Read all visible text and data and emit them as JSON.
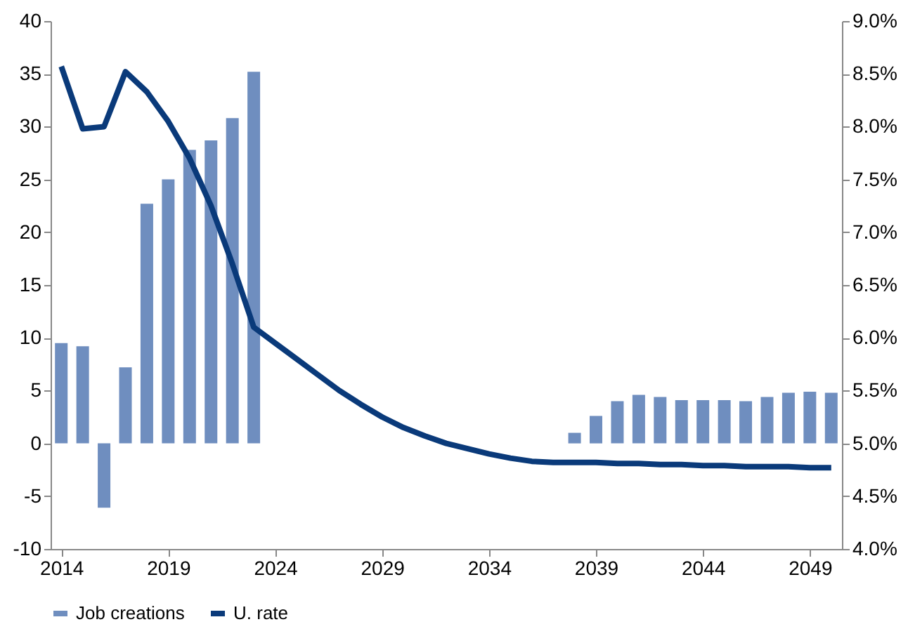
{
  "chart_data": {
    "type": "bar",
    "x": [
      2014,
      2015,
      2016,
      2017,
      2018,
      2019,
      2020,
      2021,
      2022,
      2023,
      2024,
      2025,
      2026,
      2027,
      2028,
      2029,
      2030,
      2031,
      2032,
      2033,
      2034,
      2035,
      2036,
      2037,
      2038,
      2039,
      2040,
      2041,
      2042,
      2043,
      2044,
      2045,
      2046,
      2047,
      2048,
      2049,
      2050
    ],
    "series": [
      {
        "name": "Job creations",
        "color": "#6f8ebf",
        "values": [
          9.5,
          9.2,
          -6.1,
          7.2,
          22.7,
          25.0,
          27.8,
          28.7,
          30.8,
          35.2,
          null,
          null,
          null,
          null,
          null,
          null,
          null,
          null,
          null,
          null,
          null,
          null,
          null,
          null,
          1.0,
          2.6,
          4.0,
          4.6,
          4.4,
          4.1,
          4.1,
          4.1,
          4.0,
          4.4,
          4.8,
          4.9,
          4.8
        ]
      },
      {
        "name": "U. rate",
        "type": "line",
        "axis": "y2",
        "color": "#0a3a7a",
        "values": [
          8.57,
          7.98,
          8.0,
          8.52,
          8.33,
          8.05,
          7.7,
          7.25,
          6.7,
          6.1,
          5.95,
          5.8,
          5.65,
          5.5,
          5.37,
          5.25,
          5.15,
          5.07,
          5.0,
          4.95,
          4.9,
          4.86,
          4.83,
          4.82,
          4.82,
          4.82,
          4.81,
          4.81,
          4.8,
          4.8,
          4.79,
          4.79,
          4.78,
          4.78,
          4.78,
          4.77,
          4.77
        ]
      }
    ],
    "xlim": [
      2013.5,
      2050.5
    ],
    "xticks": [
      2014,
      2019,
      2024,
      2029,
      2034,
      2039,
      2044,
      2049
    ],
    "ylim": [
      -10,
      40
    ],
    "yticks": [
      -10,
      -5,
      0,
      5,
      10,
      15,
      20,
      25,
      30,
      35,
      40
    ],
    "y2lim": [
      4,
      9
    ],
    "y2ticks": [
      {
        "value": 4,
        "label": "4.0%"
      },
      {
        "value": 4.5,
        "label": "4.5%"
      },
      {
        "value": 5,
        "label": "5.0%"
      },
      {
        "value": 5.5,
        "label": "5.5%"
      },
      {
        "value": 6,
        "label": "6.0%"
      },
      {
        "value": 6.5,
        "label": "6.5%"
      },
      {
        "value": 7,
        "label": "7.0%"
      },
      {
        "value": 7.5,
        "label": "7.5%"
      },
      {
        "value": 8,
        "label": "8.0%"
      },
      {
        "value": 8.5,
        "label": "8.5%"
      },
      {
        "value": 9,
        "label": "9.0%"
      }
    ],
    "grid": false,
    "legend": "bottom",
    "marker": "none",
    "line_style": "solid"
  }
}
